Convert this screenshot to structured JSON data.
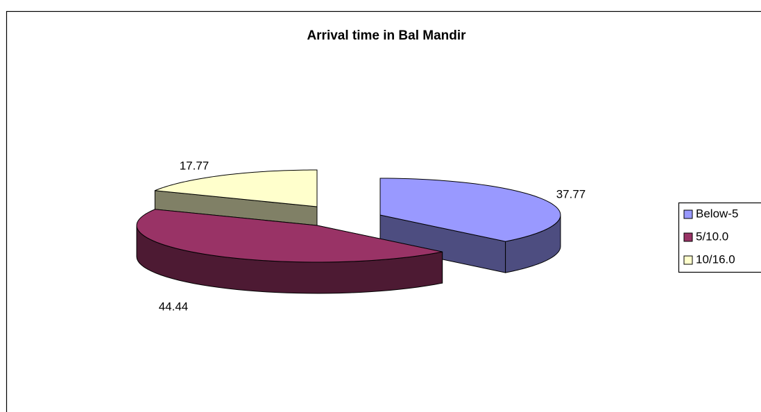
{
  "chart_data": {
    "type": "pie",
    "title": "Arrival time in Bal Mandir",
    "categories": [
      "Below-5",
      "5/10.0",
      "10/16.0"
    ],
    "values": [
      37.77,
      44.44,
      17.77
    ],
    "colors": [
      "#9999ff",
      "#993366",
      "#ffffcc"
    ],
    "legend": "right"
  }
}
